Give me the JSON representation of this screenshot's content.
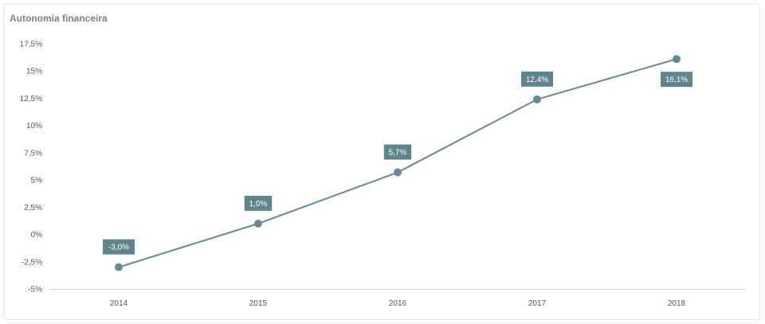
{
  "chart_data": {
    "type": "line",
    "title": "Autonomia financeira",
    "xlabel": "",
    "ylabel": "",
    "categories": [
      "2014",
      "2015",
      "2016",
      "2017",
      "2018"
    ],
    "series": [
      {
        "values": [
          -3.0,
          1.0,
          5.7,
          12.4,
          16.1
        ],
        "labels": [
          "-3,0%",
          "1,0%",
          "5,7%",
          "12,4%",
          "16,1%"
        ]
      }
    ],
    "ylim": [
      -5,
      17.5
    ],
    "yticks": [
      -5,
      -2.5,
      0,
      2.5,
      5,
      7.5,
      10,
      12.5,
      15,
      17.5
    ],
    "ytick_labels": [
      "-5%",
      "-2,5%",
      "0%",
      "2,5%",
      "5%",
      "7,5%",
      "10%",
      "12,5%",
      "15%",
      "17,5%"
    ],
    "grid": false,
    "legend": "none",
    "colors": {
      "line": "#688a93",
      "label_bg": "#5e848c",
      "axis": "#d6d6d6"
    }
  }
}
